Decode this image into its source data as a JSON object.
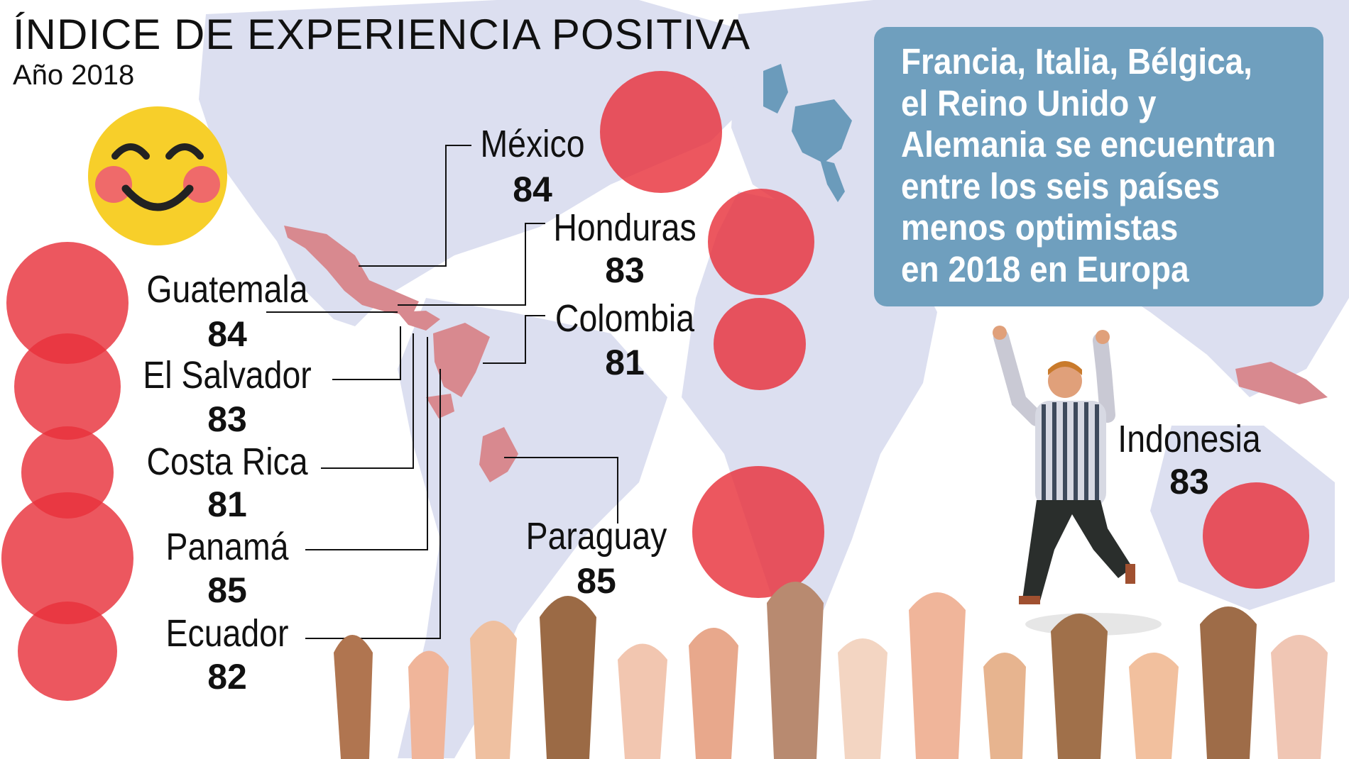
{
  "title": "ÍNDICE DE EXPERIENCIA POSITIVA",
  "subtitle": "Año 2018",
  "callout": {
    "lines": [
      "Francia, Italia, Bélgica,",
      "el Reino Unido y",
      "Alemania se encuentran",
      "entre los seis países",
      "menos optimistas",
      "en 2018 en Europa"
    ]
  },
  "countries": [
    {
      "name": "México",
      "value": "84"
    },
    {
      "name": "Honduras",
      "value": "83"
    },
    {
      "name": "Colombia",
      "value": "81"
    },
    {
      "name": "Guatemala",
      "value": "84"
    },
    {
      "name": "El Salvador",
      "value": "83"
    },
    {
      "name": "Costa Rica",
      "value": "81"
    },
    {
      "name": "Panamá",
      "value": "85"
    },
    {
      "name": "Ecuador",
      "value": "82"
    },
    {
      "name": "Paraguay",
      "value": "85"
    },
    {
      "name": "Indonesia",
      "value": "83"
    }
  ],
  "colors": {
    "bubble": "#e8323c",
    "map_land": "#dcdff0",
    "highlight_latam": "#d8898f",
    "highlight_europe": "#6b9bbb",
    "callout_bg": "#6f9fbe",
    "smiley": "#f7cf2a"
  },
  "icons": [
    "smiley-icon",
    "jumping-man-illustration",
    "smiling-hands-illustration"
  ]
}
